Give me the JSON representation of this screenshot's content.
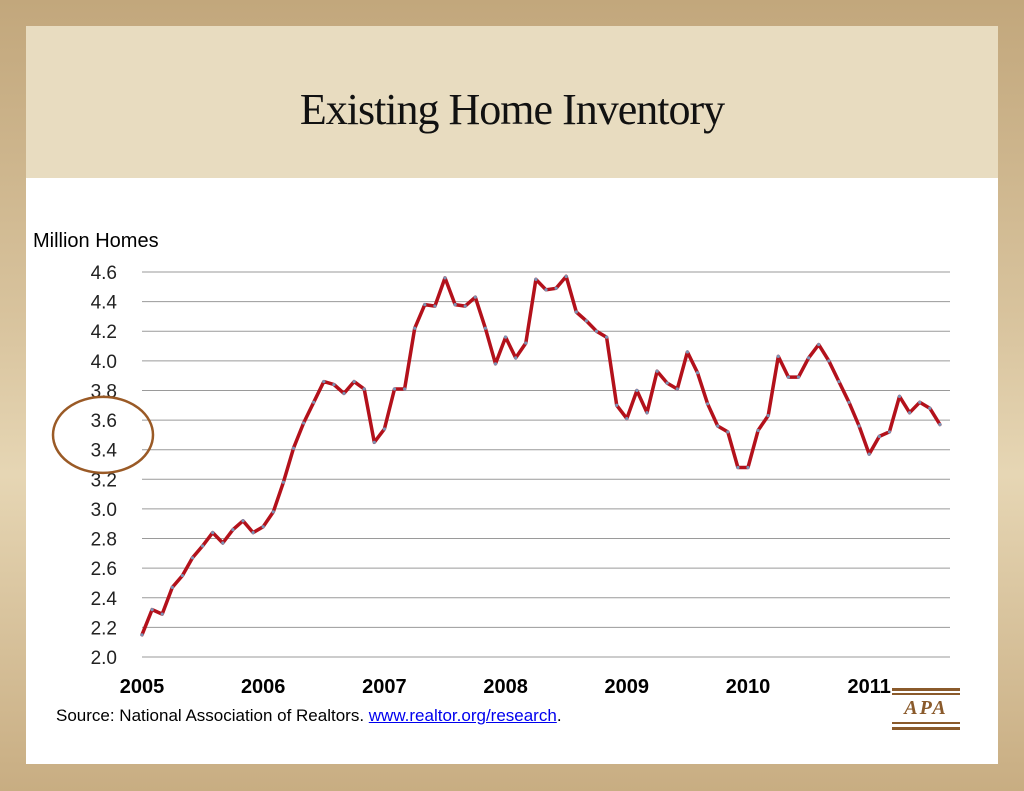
{
  "title": "Existing Home Inventory",
  "unit_label": "Million Homes",
  "source": {
    "prefix": "Source:  National Association of Realtors. ",
    "link": "www.realtor.org/research",
    "suffix": "."
  },
  "logo_text": "APA",
  "colors": {
    "line": "#b3111b",
    "marker": "#7a93b5",
    "grid": "#9a9a9a",
    "highlight_circle": "#9a5a26",
    "title_band": "#e8dcc0"
  },
  "chart_data": {
    "type": "line",
    "title": "Existing Home Inventory",
    "ylabel": "Million Homes",
    "xlabel": "",
    "ylim": [
      2.0,
      4.6
    ],
    "yticks": [
      "2.0",
      "2.2",
      "2.4",
      "2.6",
      "2.8",
      "3.0",
      "3.2",
      "3.4",
      "3.6",
      "3.8",
      "4.0",
      "4.2",
      "4.4",
      "4.6"
    ],
    "xticks": [
      "2005",
      "2006",
      "2007",
      "2008",
      "2009",
      "2010",
      "2011"
    ],
    "frequency": "monthly, Jan 2005 - Aug 2011",
    "grid": true,
    "highlight": {
      "shape": "circle",
      "around_ticks": [
        "3.6",
        "3.4"
      ]
    },
    "series": [
      {
        "values": [
          2.15,
          2.32,
          2.29,
          2.47,
          2.55,
          2.67,
          2.75,
          2.84,
          2.77,
          2.86,
          2.92,
          2.84,
          2.88,
          2.98,
          3.18,
          3.41,
          3.58,
          3.72,
          3.86,
          3.84,
          3.78,
          3.86,
          3.81,
          3.45,
          3.54,
          3.81,
          3.81,
          4.22,
          4.38,
          4.37,
          4.56,
          4.38,
          4.37,
          4.43,
          4.22,
          3.98,
          4.16,
          4.02,
          4.12,
          4.55,
          4.48,
          4.49,
          4.57,
          4.33,
          4.27,
          4.2,
          4.16,
          3.7,
          3.61,
          3.8,
          3.65,
          3.93,
          3.85,
          3.81,
          4.06,
          3.92,
          3.71,
          3.56,
          3.52,
          3.28,
          3.28,
          3.53,
          3.63,
          4.03,
          3.89,
          3.89,
          4.02,
          4.11,
          4.0,
          3.86,
          3.72,
          3.56,
          3.37,
          3.49,
          3.52,
          3.76,
          3.65,
          3.72,
          3.68,
          3.57
        ]
      }
    ]
  }
}
